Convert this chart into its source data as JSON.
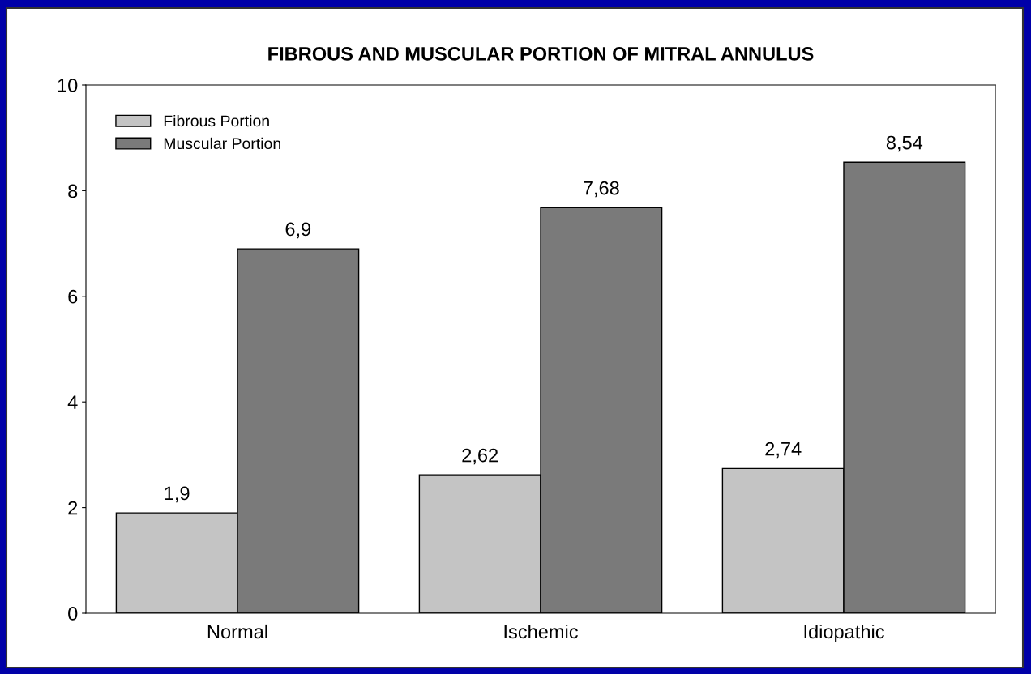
{
  "chart_data": {
    "type": "bar",
    "title": "FIBROUS AND MUSCULAR PORTION OF MITRAL ANNULUS",
    "categories": [
      "Normal",
      "Ischemic",
      "Idiopathic"
    ],
    "series": [
      {
        "name": "Fibrous Portion",
        "color": "#c4c4c4",
        "values": [
          1.9,
          2.62,
          2.74
        ],
        "value_labels": [
          "1,9",
          "2,62",
          "2,74"
        ]
      },
      {
        "name": "Muscular Portion",
        "color": "#7a7a7a",
        "values": [
          6.9,
          7.68,
          8.54
        ],
        "value_labels": [
          "6,9",
          "7,68",
          "8,54"
        ]
      }
    ],
    "ylim": [
      0,
      10
    ],
    "yticks": [
      0,
      2,
      4,
      6,
      8,
      10
    ],
    "grid": false,
    "legend": "top left"
  }
}
